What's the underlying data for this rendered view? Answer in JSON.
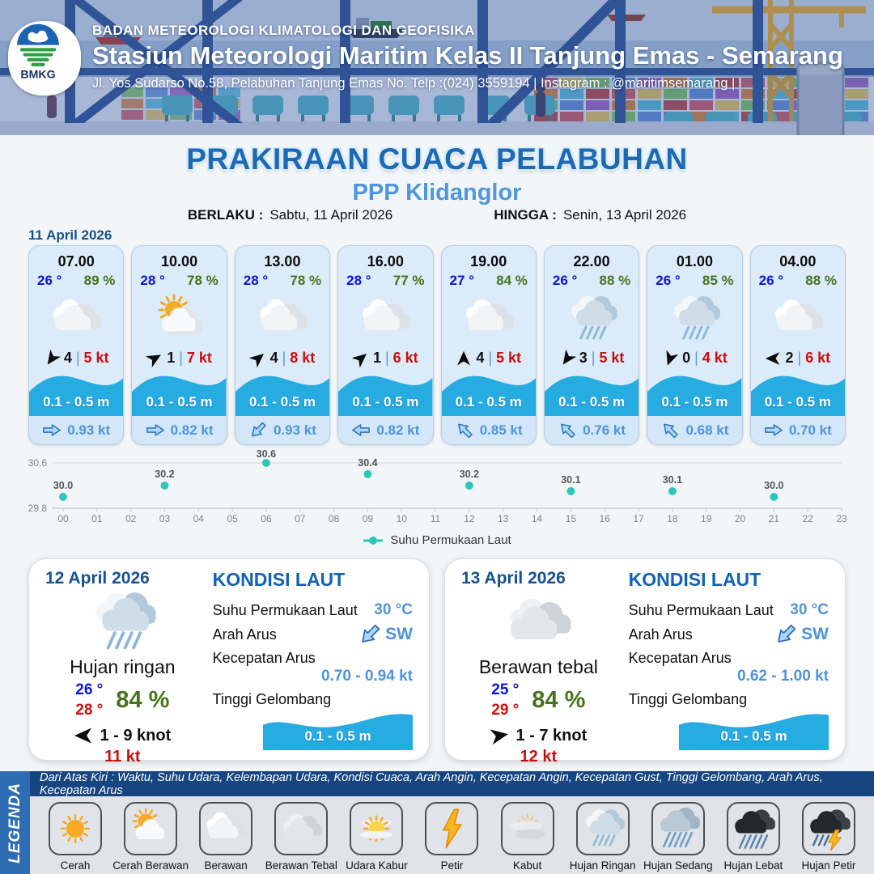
{
  "header": {
    "logo_text": "BMKG",
    "line1": "BADAN METEOROLOGI KLIMATOLOGI DAN GEOFISIKA",
    "line2": "Stasiun Meteorologi Maritim Kelas II Tanjung Emas - Semarang",
    "line3": "Jl. Yos Sudarso No.58, Pelabuhan Tanjung Emas No. Telp :(024) 3559194 | Instagram : @maritimsemarang |"
  },
  "title": {
    "main": "PRAKIRAAN CUACA PELABUHAN",
    "subtitle": "PPP Klidanglor",
    "berlaku_label": "BERLAKU :",
    "berlaku_value": "Sabtu, 11 April 2026",
    "hingga_label": "HINGGA :",
    "hingga_value": "Senin, 13 April 2026"
  },
  "forecast_date": "11 April 2026",
  "wind_sep": "|",
  "forecast_cards": [
    {
      "time": "07.00",
      "temp": "26 °",
      "humidity": "89 %",
      "icon": "berawan",
      "wind_dir_deg": 215,
      "wind_speed": "4",
      "gust": "5 kt",
      "wave": "0.1 - 0.5 m",
      "current_dir_deg": 0,
      "current_speed": "0.93 kt"
    },
    {
      "time": "10.00",
      "temp": "28 °",
      "humidity": "78 %",
      "icon": "cerah-berawan",
      "wind_dir_deg": 60,
      "wind_speed": "1",
      "gust": "7 kt",
      "wave": "0.1 - 0.5 m",
      "current_dir_deg": 0,
      "current_speed": "0.82 kt"
    },
    {
      "time": "13.00",
      "temp": "28 °",
      "humidity": "78 %",
      "icon": "berawan",
      "wind_dir_deg": 50,
      "wind_speed": "4",
      "gust": "8 kt",
      "wave": "0.1 - 0.5 m",
      "current_dir_deg": 135,
      "current_speed": "0.93 kt"
    },
    {
      "time": "16.00",
      "temp": "28 °",
      "humidity": "77 %",
      "icon": "berawan",
      "wind_dir_deg": 50,
      "wind_speed": "1",
      "gust": "6 kt",
      "wave": "0.1 - 0.5 m",
      "current_dir_deg": 180,
      "current_speed": "0.82 kt"
    },
    {
      "time": "19.00",
      "temp": "27 °",
      "humidity": "84 %",
      "icon": "berawan",
      "wind_dir_deg": 0,
      "wind_speed": "4",
      "gust": "5 kt",
      "wave": "0.1 - 0.5 m",
      "current_dir_deg": -135,
      "current_speed": "0.85 kt"
    },
    {
      "time": "22.00",
      "temp": "26 °",
      "humidity": "88 %",
      "icon": "hujan-ringan",
      "wind_dir_deg": 215,
      "wind_speed": "3",
      "gust": "5 kt",
      "wave": "0.1 - 0.5 m",
      "current_dir_deg": -135,
      "current_speed": "0.76 kt"
    },
    {
      "time": "01.00",
      "temp": "26 °",
      "humidity": "85 %",
      "icon": "hujan-ringan",
      "wind_dir_deg": 200,
      "wind_speed": "0",
      "gust": "4 kt",
      "wave": "0.1 - 0.5 m",
      "current_dir_deg": -135,
      "current_speed": "0.68 kt"
    },
    {
      "time": "04.00",
      "temp": "26 °",
      "humidity": "88 %",
      "icon": "berawan",
      "wind_dir_deg": 270,
      "wind_speed": "2",
      "gust": "6 kt",
      "wave": "0.1 - 0.5 m",
      "current_dir_deg": 0,
      "current_speed": "0.70 kt"
    }
  ],
  "chart_data": {
    "type": "scatter",
    "x": [
      0,
      3,
      6,
      9,
      12,
      15,
      18,
      21
    ],
    "values": [
      30.0,
      30.2,
      30.6,
      30.4,
      30.2,
      30.1,
      30.1,
      30.0
    ],
    "x_ticks": [
      "00",
      "01",
      "02",
      "03",
      "04",
      "05",
      "06",
      "07",
      "08",
      "09",
      "10",
      "11",
      "12",
      "13",
      "14",
      "15",
      "16",
      "17",
      "18",
      "19",
      "20",
      "21",
      "22",
      "23"
    ],
    "ylim": [
      29.8,
      30.6
    ],
    "series_name": "Suhu Permukaan Laut",
    "point_color": "#2bc8b8",
    "grid": true,
    "legend_position": "bottom"
  },
  "daily_cards": [
    {
      "date": "12 April 2026",
      "icon": "hujan-ringan",
      "condition": "Hujan ringan",
      "temp_min": "26 °",
      "temp_max": "28 °",
      "humidity": "84 %",
      "wind_dir_deg": 270,
      "wind_range": "1 - 9 knot",
      "gust": "11 kt",
      "sea": {
        "heading": "KONDISI LAUT",
        "sst_label": "Suhu Permukaan Laut",
        "sst": "30 °C",
        "current_dir_label": "Arah Arus",
        "current_dir": "SW",
        "current_dir_deg": 135,
        "current_speed_label": "Kecepatan Arus",
        "current_speed": "0.70 - 0.94 kt",
        "wave_label": "Tinggi Gelombang",
        "wave": "0.1 - 0.5 m"
      }
    },
    {
      "date": "13 April 2026",
      "icon": "berawan-tebal",
      "condition": "Berawan tebal",
      "temp_min": "25 °",
      "temp_max": "29 °",
      "humidity": "84 %",
      "wind_dir_deg": 80,
      "wind_range": "1 - 7 knot",
      "gust": "12 kt",
      "sea": {
        "heading": "KONDISI LAUT",
        "sst_label": "Suhu Permukaan Laut",
        "sst": "30 °C",
        "current_dir_label": "Arah Arus",
        "current_dir": "SW",
        "current_dir_deg": 135,
        "current_speed_label": "Kecepatan Arus",
        "current_speed": "0.62 - 1.00 kt",
        "wave_label": "Tinggi Gelombang",
        "wave": "0.1 - 0.5 m"
      }
    }
  ],
  "legend": {
    "vertical_label": "LEGENDA",
    "description": "Dari Atas Kiri : Waktu, Suhu Udara, Kelembapan Udara, Kondisi Cuaca, Arah Angin, Kecepatan Angin, Kecepatan Gust, Tinggi Gelombang, Arah Arus, Kecepatan Arus",
    "items": [
      {
        "label": "Cerah",
        "icon": "cerah"
      },
      {
        "label": "Cerah Berawan",
        "icon": "cerah-berawan"
      },
      {
        "label": "Berawan",
        "icon": "berawan"
      },
      {
        "label": "Berawan Tebal",
        "icon": "berawan-tebal"
      },
      {
        "label": "Udara Kabur",
        "icon": "udara-kabur"
      },
      {
        "label": "Petir",
        "icon": "petir"
      },
      {
        "label": "Kabut",
        "icon": "kabut"
      },
      {
        "label": "Hujan Ringan",
        "icon": "hujan-ringan"
      },
      {
        "label": "Hujan Sedang",
        "icon": "hujan-sedang"
      },
      {
        "label": "Hujan Lebat",
        "icon": "hujan-lebat"
      },
      {
        "label": "Hujan Petir",
        "icon": "hujan-petir"
      }
    ]
  },
  "colors": {
    "title_blue": "#1d69b4",
    "subtitle_blue": "#4f96dd",
    "date_blue": "#16508e",
    "temp_blue": "#0b16cf",
    "humidity_green": "#47731c",
    "gust_red": "#cb0e0e",
    "wave_blue": "#27ace2",
    "value_blue": "#4e94da",
    "chart_teal": "#2bc8b8",
    "legend_bar_blue": "#2e6db4",
    "legend_strip_navy": "#17457f"
  }
}
